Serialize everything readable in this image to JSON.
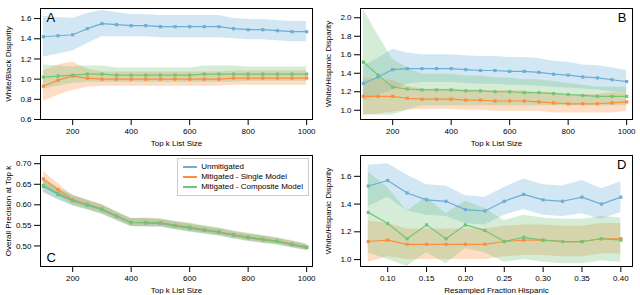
{
  "chart_data": [
    {
      "type": "line",
      "annotations": [
        "A"
      ],
      "xlabel": "Top k List Size",
      "ylabel": "White/Black Disparity",
      "xlim": [
        90,
        1020
      ],
      "xticks": [
        200,
        400,
        600,
        800,
        1000
      ],
      "ylim": [
        0.6,
        1.7
      ],
      "yticks": [
        0.6,
        0.8,
        {
          "value": 1.0,
          "label": "1.0"
        },
        1.2,
        1.4,
        1.6
      ],
      "grid": false,
      "marker": "square",
      "x": [
        100,
        150,
        200,
        250,
        300,
        350,
        400,
        450,
        500,
        550,
        600,
        650,
        700,
        750,
        800,
        850,
        900,
        950,
        1000
      ],
      "series": [
        {
          "color": "#6baed6",
          "values": [
            1.42,
            1.43,
            1.44,
            1.5,
            1.55,
            1.54,
            1.53,
            1.53,
            1.52,
            1.52,
            1.52,
            1.52,
            1.52,
            1.5,
            1.49,
            1.49,
            1.48,
            1.47,
            1.47
          ],
          "lo": [
            1.22,
            1.25,
            1.28,
            1.35,
            1.42,
            1.42,
            1.42,
            1.42,
            1.41,
            1.41,
            1.41,
            1.41,
            1.41,
            1.4,
            1.39,
            1.39,
            1.38,
            1.37,
            1.37
          ],
          "hi": [
            1.62,
            1.61,
            1.6,
            1.65,
            1.68,
            1.66,
            1.64,
            1.64,
            1.63,
            1.63,
            1.63,
            1.63,
            1.63,
            1.6,
            1.59,
            1.59,
            1.58,
            1.57,
            1.57
          ]
        },
        {
          "color": "#fd8d3c",
          "values": [
            0.93,
            0.99,
            1.03,
            1.01,
            1.0,
            1.0,
            1.0,
            1.0,
            1.0,
            1.0,
            1.0,
            1.0,
            1.0,
            1.01,
            1.01,
            1.01,
            1.01,
            1.01,
            1.01
          ],
          "lo": [
            0.78,
            0.84,
            0.89,
            0.92,
            0.93,
            0.93,
            0.93,
            0.93,
            0.93,
            0.93,
            0.93,
            0.93,
            0.93,
            0.94,
            0.94,
            0.94,
            0.94,
            0.94,
            0.94
          ],
          "hi": [
            1.08,
            1.14,
            1.17,
            1.1,
            1.07,
            1.07,
            1.07,
            1.07,
            1.07,
            1.07,
            1.07,
            1.07,
            1.07,
            1.08,
            1.08,
            1.08,
            1.08,
            1.08,
            1.08
          ]
        },
        {
          "color": "#74c476",
          "values": [
            1.02,
            1.03,
            1.04,
            1.05,
            1.05,
            1.04,
            1.04,
            1.04,
            1.04,
            1.04,
            1.04,
            1.05,
            1.05,
            1.05,
            1.05,
            1.05,
            1.05,
            1.05,
            1.05
          ],
          "lo": [
            0.9,
            0.93,
            0.96,
            0.97,
            0.97,
            0.97,
            0.97,
            0.97,
            0.97,
            0.97,
            0.97,
            0.97,
            0.97,
            0.97,
            0.98,
            0.98,
            0.98,
            0.98,
            0.98
          ],
          "hi": [
            1.14,
            1.13,
            1.12,
            1.13,
            1.13,
            1.11,
            1.11,
            1.11,
            1.11,
            1.11,
            1.11,
            1.13,
            1.13,
            1.13,
            1.12,
            1.12,
            1.12,
            1.12,
            1.12
          ]
        }
      ]
    },
    {
      "type": "line",
      "annotations": [
        "B"
      ],
      "xlabel": "Top k List Size",
      "ylabel": "White/Hispanic Disparity",
      "xlim": [
        90,
        1020
      ],
      "xticks": [
        200,
        400,
        600,
        800,
        1000
      ],
      "ylim": [
        0.9,
        2.1
      ],
      "yticks": [
        {
          "value": 1.0,
          "label": "1.0"
        },
        1.2,
        1.4,
        1.6,
        1.8,
        {
          "value": 2.0,
          "label": "2.0"
        }
      ],
      "grid": false,
      "marker": "square",
      "x": [
        100,
        150,
        200,
        250,
        300,
        350,
        400,
        450,
        500,
        550,
        600,
        650,
        700,
        750,
        800,
        850,
        900,
        950,
        1000
      ],
      "series": [
        {
          "color": "#6baed6",
          "values": [
            1.29,
            1.36,
            1.44,
            1.45,
            1.45,
            1.45,
            1.45,
            1.44,
            1.43,
            1.43,
            1.42,
            1.42,
            1.41,
            1.39,
            1.38,
            1.36,
            1.35,
            1.33,
            1.31
          ],
          "lo": [
            1.1,
            1.16,
            1.22,
            1.28,
            1.3,
            1.3,
            1.3,
            1.29,
            1.28,
            1.28,
            1.27,
            1.27,
            1.26,
            1.25,
            1.24,
            1.23,
            1.22,
            1.2,
            1.19
          ],
          "hi": [
            1.48,
            1.56,
            1.66,
            1.62,
            1.6,
            1.6,
            1.6,
            1.59,
            1.58,
            1.58,
            1.57,
            1.57,
            1.56,
            1.53,
            1.52,
            1.49,
            1.48,
            1.46,
            1.43
          ]
        },
        {
          "color": "#fd8d3c",
          "values": [
            1.15,
            1.15,
            1.15,
            1.13,
            1.12,
            1.12,
            1.12,
            1.11,
            1.11,
            1.1,
            1.1,
            1.1,
            1.09,
            1.08,
            1.07,
            1.07,
            1.07,
            1.08,
            1.09
          ],
          "lo": [
            0.95,
            0.96,
            0.98,
            1.0,
            1.01,
            1.01,
            1.01,
            1.0,
            1.0,
            0.99,
            0.99,
            0.99,
            0.99,
            0.97,
            0.97,
            0.97,
            0.97,
            0.97,
            0.99
          ],
          "hi": [
            1.35,
            1.34,
            1.32,
            1.26,
            1.23,
            1.23,
            1.23,
            1.22,
            1.22,
            1.21,
            1.21,
            1.21,
            1.19,
            1.19,
            1.17,
            1.17,
            1.17,
            1.19,
            1.19
          ]
        },
        {
          "color": "#74c476",
          "values": [
            1.52,
            1.38,
            1.25,
            1.23,
            1.22,
            1.22,
            1.22,
            1.21,
            1.21,
            1.2,
            1.2,
            1.19,
            1.19,
            1.18,
            1.17,
            1.16,
            1.15,
            1.15,
            1.15
          ],
          "lo": [
            0.95,
            0.95,
            0.95,
            1.0,
            1.05,
            1.05,
            1.05,
            1.05,
            1.05,
            1.05,
            1.05,
            1.05,
            1.05,
            1.05,
            1.05,
            1.05,
            1.05,
            1.05,
            1.05
          ],
          "hi": [
            2.09,
            1.81,
            1.55,
            1.46,
            1.39,
            1.39,
            1.39,
            1.37,
            1.37,
            1.35,
            1.35,
            1.33,
            1.33,
            1.31,
            1.29,
            1.27,
            1.25,
            1.25,
            1.25
          ]
        }
      ]
    },
    {
      "type": "line",
      "annotations": [
        "C"
      ],
      "xlabel": "Top k List Size",
      "ylabel": "Overall Precision at Top k",
      "xlim": [
        90,
        1020
      ],
      "xticks": [
        200,
        400,
        600,
        800,
        1000
      ],
      "ylim": [
        0.45,
        0.72
      ],
      "yticks": [
        {
          "value": 0.5,
          "label": "0.50"
        },
        0.55,
        {
          "value": 0.6,
          "label": "0.60"
        },
        0.65,
        {
          "value": 0.7,
          "label": "0.70"
        }
      ],
      "grid": false,
      "marker": "square",
      "legend": "upper right",
      "x": [
        100,
        150,
        200,
        250,
        300,
        350,
        400,
        450,
        500,
        550,
        600,
        650,
        700,
        750,
        800,
        850,
        900,
        950,
        1000
      ],
      "series": [
        {
          "name": "Unmitigated",
          "color": "#6baed6",
          "values": [
            0.645,
            0.625,
            0.61,
            0.599,
            0.588,
            0.572,
            0.557,
            0.556,
            0.555,
            0.549,
            0.543,
            0.538,
            0.533,
            0.526,
            0.52,
            0.515,
            0.511,
            0.503,
            0.496
          ],
          "lo": [
            0.63,
            0.612,
            0.598,
            0.588,
            0.577,
            0.562,
            0.547,
            0.546,
            0.546,
            0.54,
            0.534,
            0.529,
            0.524,
            0.518,
            0.512,
            0.507,
            0.503,
            0.496,
            0.489
          ],
          "hi": [
            0.66,
            0.638,
            0.622,
            0.61,
            0.599,
            0.582,
            0.567,
            0.566,
            0.564,
            0.558,
            0.552,
            0.547,
            0.542,
            0.534,
            0.528,
            0.523,
            0.519,
            0.51,
            0.503
          ]
        },
        {
          "name": "Mitigated - Single Model",
          "color": "#fd8d3c",
          "values": [
            0.663,
            0.637,
            0.612,
            0.601,
            0.59,
            0.573,
            0.557,
            0.557,
            0.556,
            0.55,
            0.545,
            0.539,
            0.534,
            0.527,
            0.521,
            0.516,
            0.511,
            0.504,
            0.497
          ],
          "lo": [
            0.645,
            0.622,
            0.601,
            0.59,
            0.58,
            0.564,
            0.548,
            0.547,
            0.547,
            0.541,
            0.536,
            0.531,
            0.526,
            0.519,
            0.513,
            0.508,
            0.504,
            0.497,
            0.49
          ],
          "hi": [
            0.681,
            0.652,
            0.623,
            0.612,
            0.6,
            0.582,
            0.566,
            0.567,
            0.565,
            0.559,
            0.554,
            0.547,
            0.542,
            0.535,
            0.529,
            0.524,
            0.518,
            0.511,
            0.504
          ]
        },
        {
          "name": "Mitigated - Composite Model",
          "color": "#74c476",
          "values": [
            0.647,
            0.628,
            0.611,
            0.6,
            0.589,
            0.573,
            0.557,
            0.557,
            0.556,
            0.55,
            0.545,
            0.539,
            0.534,
            0.527,
            0.521,
            0.516,
            0.511,
            0.504,
            0.497
          ],
          "lo": [
            0.63,
            0.614,
            0.598,
            0.588,
            0.577,
            0.562,
            0.547,
            0.546,
            0.546,
            0.54,
            0.534,
            0.529,
            0.524,
            0.517,
            0.511,
            0.506,
            0.502,
            0.495,
            0.489
          ],
          "hi": [
            0.664,
            0.642,
            0.624,
            0.612,
            0.601,
            0.584,
            0.567,
            0.568,
            0.566,
            0.56,
            0.556,
            0.549,
            0.544,
            0.537,
            0.531,
            0.526,
            0.52,
            0.513,
            0.505
          ]
        }
      ]
    },
    {
      "type": "line",
      "annotations": [
        "D"
      ],
      "xlabel": "Resampled Fraction Hispanic",
      "ylabel": "White/Hispanic Disparity",
      "xlim": [
        0.065,
        0.415
      ],
      "xticks": [
        {
          "value": 0.1,
          "label": "0.10"
        },
        0.15,
        {
          "value": 0.2,
          "label": "0.20"
        },
        0.25,
        {
          "value": 0.3,
          "label": "0.30"
        },
        0.35,
        {
          "value": 0.4,
          "label": "0.40"
        }
      ],
      "ylim": [
        0.95,
        1.75
      ],
      "yticks": [
        {
          "value": 1.0,
          "label": "1.0"
        },
        1.2,
        1.4,
        1.6
      ],
      "grid": false,
      "marker": "square",
      "x": [
        0.075,
        0.1,
        0.125,
        0.15,
        0.175,
        0.2,
        0.225,
        0.25,
        0.275,
        0.3,
        0.325,
        0.35,
        0.375,
        0.4
      ],
      "series": [
        {
          "color": "#6baed6",
          "values": [
            1.53,
            1.57,
            1.48,
            1.43,
            1.42,
            1.36,
            1.35,
            1.42,
            1.47,
            1.43,
            1.42,
            1.45,
            1.4,
            1.45
          ],
          "lo": [
            1.38,
            1.45,
            1.35,
            1.32,
            1.31,
            1.26,
            1.25,
            1.32,
            1.36,
            1.32,
            1.31,
            1.33,
            1.29,
            1.34
          ],
          "hi": [
            1.68,
            1.69,
            1.61,
            1.54,
            1.53,
            1.46,
            1.45,
            1.52,
            1.58,
            1.54,
            1.53,
            1.57,
            1.51,
            1.56
          ]
        },
        {
          "color": "#fd8d3c",
          "values": [
            1.13,
            1.14,
            1.11,
            1.11,
            1.11,
            1.11,
            1.11,
            1.13,
            1.14,
            1.14,
            1.13,
            1.13,
            1.15,
            1.15
          ],
          "lo": [
            0.98,
            1.02,
            1.0,
            1.0,
            1.0,
            1.0,
            1.0,
            1.02,
            1.03,
            1.03,
            1.02,
            1.02,
            1.04,
            1.04
          ],
          "hi": [
            1.28,
            1.26,
            1.22,
            1.22,
            1.22,
            1.22,
            1.22,
            1.24,
            1.25,
            1.25,
            1.24,
            1.24,
            1.26,
            1.26
          ]
        },
        {
          "color": "#74c476",
          "values": [
            1.34,
            1.26,
            1.15,
            1.25,
            1.15,
            1.25,
            1.21,
            1.13,
            1.16,
            1.14,
            1.13,
            1.13,
            1.15,
            1.14
          ],
          "lo": [
            1.05,
            1.0,
            0.95,
            1.05,
            0.97,
            1.08,
            1.05,
            0.98,
            1.0,
            0.98,
            0.97,
            0.97,
            0.99,
            0.98
          ],
          "hi": [
            1.63,
            1.52,
            1.35,
            1.45,
            1.33,
            1.42,
            1.37,
            1.28,
            1.32,
            1.3,
            1.29,
            1.29,
            1.31,
            1.3
          ]
        }
      ]
    }
  ]
}
